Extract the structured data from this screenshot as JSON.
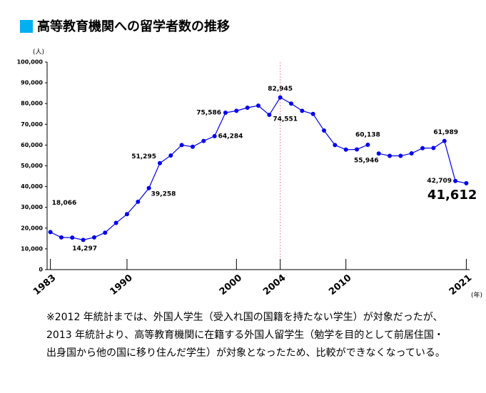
{
  "chart_data": {
    "type": "line",
    "title": "高等教育機関への留学者数の推移",
    "y_unit": "(人)",
    "x_unit": "(年)",
    "note": [
      "※2012 年統計までは、外国人学生（受入れ国の国籍を持たない学生）が対象だったが、",
      "2013 年統計より、高等教育機関に在籍する外国人留学生（勉学を目的として前居住国・",
      "出身国から他の国に移り住んだ学生）が対象となったため、比較ができなくなっている。"
    ],
    "x": [
      1983,
      1984,
      1985,
      1986,
      1987,
      1988,
      1989,
      1990,
      1991,
      1992,
      1993,
      1994,
      1995,
      1996,
      1997,
      1998,
      1999,
      2000,
      2001,
      2002,
      2003,
      2004,
      2005,
      2006,
      2007,
      2008,
      2009,
      2010,
      2011,
      2012,
      2013,
      2014,
      2015,
      2016,
      2017,
      2018,
      2019,
      2020,
      2021
    ],
    "series": [
      {
        "color": "#0000ee",
        "values": [
          18066,
          15500,
          15400,
          14297,
          15500,
          17800,
          22500,
          26700,
          32700,
          39258,
          51295,
          55000,
          60000,
          59200,
          62000,
          64284,
          75586,
          76500,
          78000,
          79000,
          74551,
          82945,
          80000,
          76500,
          75000,
          67000,
          60000,
          57800,
          57900,
          60138,
          null,
          null,
          null,
          null,
          null,
          null,
          null,
          null,
          null
        ],
        "value_labels": [
          "18,066",
          null,
          null,
          "14,297",
          null,
          null,
          null,
          null,
          null,
          "39,258",
          "51,295",
          null,
          null,
          null,
          null,
          "64,284",
          "75,586",
          null,
          null,
          null,
          "74,551",
          "82,945",
          null,
          null,
          null,
          null,
          null,
          null,
          null,
          "60,138",
          null,
          null,
          null,
          null,
          null,
          null,
          null,
          null,
          null
        ]
      },
      {
        "color": "#0000ee",
        "values": [
          null,
          null,
          null,
          null,
          null,
          null,
          null,
          null,
          null,
          null,
          null,
          null,
          null,
          null,
          null,
          null,
          null,
          null,
          null,
          null,
          null,
          null,
          null,
          null,
          null,
          null,
          null,
          null,
          null,
          null,
          55946,
          54800,
          54800,
          56000,
          58500,
          58600,
          61989,
          42709,
          41612
        ],
        "value_labels": [
          null,
          null,
          null,
          null,
          null,
          null,
          null,
          null,
          null,
          null,
          null,
          null,
          null,
          null,
          null,
          null,
          null,
          null,
          null,
          null,
          null,
          null,
          null,
          null,
          null,
          null,
          null,
          null,
          null,
          null,
          "55,946",
          null,
          null,
          null,
          null,
          null,
          "61,989",
          "42,709",
          "41,612"
        ]
      }
    ],
    "xlim": [
      1982.7,
      2021.3
    ],
    "xticks": [
      1983,
      1990,
      2000,
      2004,
      2010,
      2021
    ],
    "ylim": [
      0,
      100000
    ],
    "yticks": [
      0,
      {
        "value": 10000,
        "label": "10,000"
      },
      {
        "value": 20000,
        "label": "20,000"
      },
      {
        "value": 30000,
        "label": "30,000"
      },
      {
        "value": 40000,
        "label": "40,000"
      },
      {
        "value": 50000,
        "label": "50,000"
      },
      {
        "value": 60000,
        "label": "60,000"
      },
      {
        "value": 70000,
        "label": "70,000"
      },
      {
        "value": 80000,
        "label": "80,000"
      },
      {
        "value": 90000,
        "label": "90,000"
      },
      {
        "value": 100000,
        "label": "100,000"
      }
    ],
    "grid": false
  }
}
